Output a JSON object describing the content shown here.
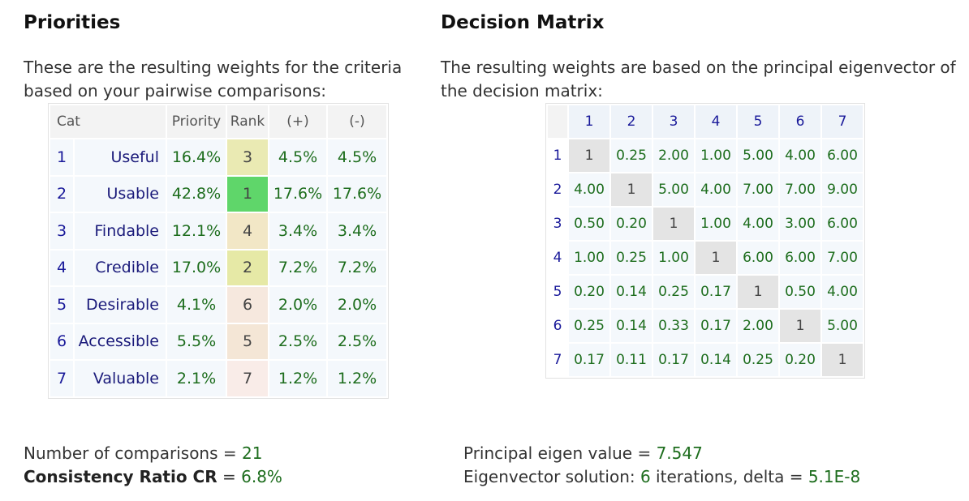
{
  "priorities": {
    "title": "Priorities",
    "intro_line1": "These are the resulting weights for the criteria",
    "intro_line2": "based on your pairwise comparisons:",
    "headers": {
      "cat": "Cat",
      "priority": "Priority",
      "rank": "Rank",
      "plus": "(+)",
      "minus": "(-)"
    },
    "rows": [
      {
        "num": "1",
        "name": "Useful",
        "priority": "16.4%",
        "rank": "3",
        "plus": "4.5%",
        "minus": "4.5%",
        "rank_color": "#eaeab3"
      },
      {
        "num": "2",
        "name": "Usable",
        "priority": "42.8%",
        "rank": "1",
        "plus": "17.6%",
        "minus": "17.6%",
        "rank_color": "#5fd66a"
      },
      {
        "num": "3",
        "name": "Findable",
        "priority": "12.1%",
        "rank": "4",
        "plus": "3.4%",
        "minus": "3.4%",
        "rank_color": "#f2e7c6"
      },
      {
        "num": "4",
        "name": "Credible",
        "priority": "17.0%",
        "rank": "2",
        "plus": "7.2%",
        "minus": "7.2%",
        "rank_color": "#e6e9a6"
      },
      {
        "num": "5",
        "name": "Desirable",
        "priority": "4.1%",
        "rank": "6",
        "plus": "2.0%",
        "minus": "2.0%",
        "rank_color": "#f6e8de"
      },
      {
        "num": "6",
        "name": "Accessible",
        "priority": "5.5%",
        "rank": "5",
        "plus": "2.5%",
        "minus": "2.5%",
        "rank_color": "#f4e6d6"
      },
      {
        "num": "7",
        "name": "Valuable",
        "priority": "2.1%",
        "rank": "7",
        "plus": "1.2%",
        "minus": "1.2%",
        "rank_color": "#f9ece8"
      }
    ]
  },
  "matrix": {
    "title": "Decision Matrix",
    "intro_line1": "The resulting weights are based on the principal eigenvector of",
    "intro_line2": "the decision matrix:",
    "col_headers": [
      "1",
      "2",
      "3",
      "4",
      "5",
      "6",
      "7"
    ],
    "rows": [
      {
        "label": "1",
        "cells": [
          "1",
          "0.25",
          "2.00",
          "1.00",
          "5.00",
          "4.00",
          "6.00"
        ]
      },
      {
        "label": "2",
        "cells": [
          "4.00",
          "1",
          "5.00",
          "4.00",
          "7.00",
          "7.00",
          "9.00"
        ]
      },
      {
        "label": "3",
        "cells": [
          "0.50",
          "0.20",
          "1",
          "1.00",
          "4.00",
          "3.00",
          "6.00"
        ]
      },
      {
        "label": "4",
        "cells": [
          "1.00",
          "0.25",
          "1.00",
          "1",
          "6.00",
          "6.00",
          "7.00"
        ]
      },
      {
        "label": "5",
        "cells": [
          "0.20",
          "0.14",
          "0.25",
          "0.17",
          "1",
          "0.50",
          "4.00"
        ]
      },
      {
        "label": "6",
        "cells": [
          "0.25",
          "0.14",
          "0.33",
          "0.17",
          "2.00",
          "1",
          "5.00"
        ]
      },
      {
        "label": "7",
        "cells": [
          "0.17",
          "0.11",
          "0.17",
          "0.14",
          "0.25",
          "0.20",
          "1"
        ]
      }
    ]
  },
  "stats": {
    "comparisons_label": "Number of comparisons = ",
    "comparisons_value": "21",
    "cr_label": "Consistency Ratio CR",
    "cr_eq": " = ",
    "cr_value": "6.8%",
    "eigen_label": "Principal eigen value = ",
    "eigen_value": "7.547",
    "solution_label": "Eigenvector solution: ",
    "iterations_value": "6",
    "iterations_text": " iterations, delta = ",
    "delta_value": "5.1E-8"
  }
}
